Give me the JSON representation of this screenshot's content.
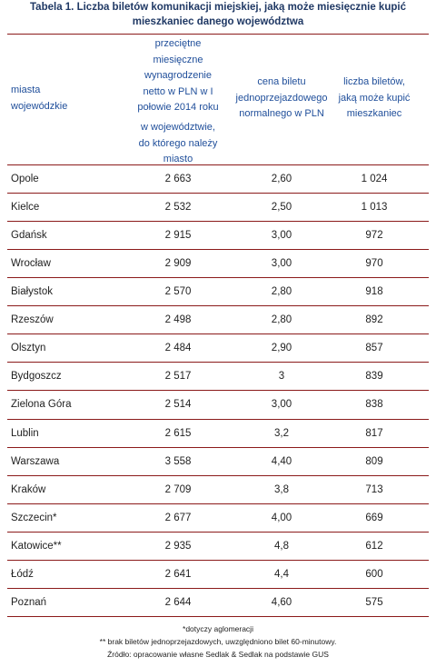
{
  "title": [
    "Tabela 1. Liczba biletów komunikacji miejskiej, jaką może miesięcznie kupić",
    "mieszkaniec danego województwa"
  ],
  "table": {
    "header": [
      [
        "miasta",
        "wojewódzkie"
      ],
      [
        "przeciętne",
        "miesięczne",
        "wynagrodzenie",
        "netto w PLN w I",
        "połowie 2014  roku",
        "w województwie,",
        "do którego należy",
        "miasto"
      ],
      [
        "cena biletu",
        "jednoprzejazdowego",
        "normalnego w PLN"
      ],
      [
        "liczba biletów,",
        "jaką może kupić",
        "mieszkaniec"
      ]
    ],
    "rows": [
      [
        "Opole",
        "2 663",
        "2,60",
        "1 024"
      ],
      [
        "Kielce",
        "2 532",
        "2,50",
        "1 013"
      ],
      [
        "Gdańsk",
        "2 915",
        "3,00",
        "972"
      ],
      [
        "Wrocław",
        "2 909",
        "3,00",
        "970"
      ],
      [
        "Białystok",
        "2 570",
        "2,80",
        "918"
      ],
      [
        "Rzeszów",
        "2 498",
        "2,80",
        "892"
      ],
      [
        "Olsztyn",
        "2 484",
        "2,90",
        "857"
      ],
      [
        "Bydgoszcz",
        "2 517",
        "3",
        "839"
      ],
      [
        "Zielona Góra",
        "2 514",
        "3,00",
        "838"
      ],
      [
        "Lublin",
        "2 615",
        "3,2",
        "817"
      ],
      [
        "Warszawa",
        "3 558",
        "4,40",
        "809"
      ],
      [
        "Kraków",
        "2 709",
        "3,8",
        "713"
      ],
      [
        "Szczecin*",
        "2 677",
        "4,00",
        "669"
      ],
      [
        "Katowice**",
        "2 935",
        "4,8",
        "612"
      ],
      [
        "Łódź",
        "2 641",
        "4,4",
        "600"
      ],
      [
        "Poznań",
        "2 644",
        "4,60",
        "575"
      ]
    ]
  },
  "footnotes": [
    "*dotyczy aglomeracji",
    "** brak biletów jednoprzejazdowych, uwzględniono bilet 60-minutowy.",
    "Źródło: opracowanie własne Sedlak & Sedlak na podstawie GUS"
  ]
}
